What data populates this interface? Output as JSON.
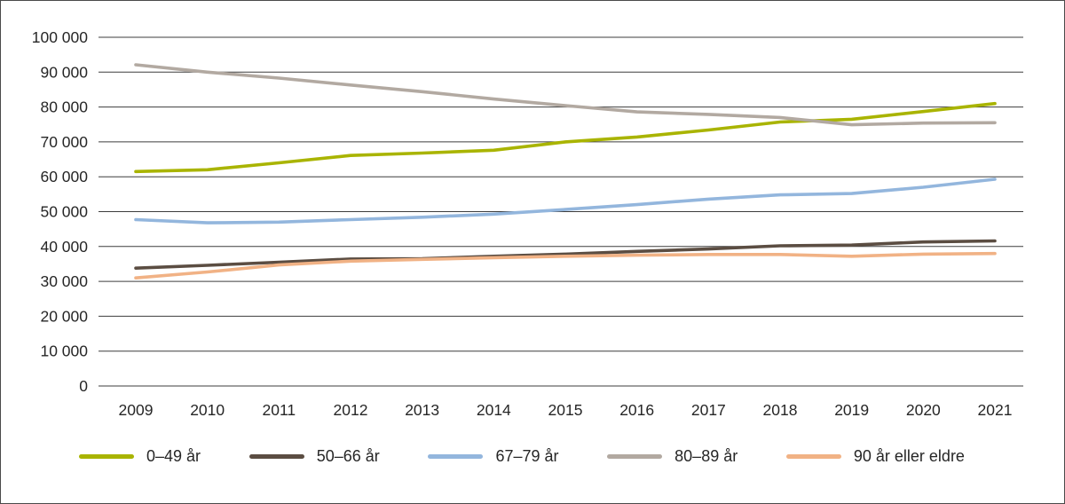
{
  "chart_data": {
    "type": "line",
    "title": "",
    "xlabel": "",
    "ylabel": "",
    "x": [
      2009,
      2010,
      2011,
      2012,
      2013,
      2014,
      2015,
      2016,
      2017,
      2018,
      2019,
      2020,
      2021
    ],
    "series": [
      {
        "name": "0–49 år",
        "color": "#a9b400",
        "values": [
          61500,
          62000,
          64000,
          66100,
          66800,
          67600,
          70000,
          71400,
          73400,
          75700,
          76500,
          78700,
          81000
        ]
      },
      {
        "name": "50–66 år",
        "color": "#5b4d42",
        "values": [
          33800,
          34600,
          35500,
          36400,
          36500,
          37200,
          37800,
          38600,
          39300,
          40200,
          40400,
          41300,
          41600
        ]
      },
      {
        "name": "67–79 år",
        "color": "#93b6dd",
        "values": [
          47700,
          46800,
          47000,
          47700,
          48400,
          49300,
          50600,
          52000,
          53600,
          54800,
          55200,
          57000,
          59300
        ]
      },
      {
        "name": "80–89 år",
        "color": "#b2a9a1",
        "values": [
          92100,
          90000,
          88300,
          86300,
          84400,
          82300,
          80400,
          78600,
          77900,
          77000,
          74900,
          75400,
          75500
        ]
      },
      {
        "name": "90 år eller eldre",
        "color": "#f1b285",
        "values": [
          31000,
          32700,
          34700,
          35800,
          36300,
          36800,
          37200,
          37500,
          37700,
          37700,
          37200,
          37800,
          38000
        ]
      }
    ],
    "ylim": [
      0,
      100000
    ],
    "ytick_step": 10000,
    "ytick_labels": [
      "0",
      "10 000",
      "20 000",
      "30 000",
      "40 000",
      "50 000",
      "60 000",
      "70 000",
      "80 000",
      "90 000",
      "100 000"
    ],
    "grid": true,
    "legend_position": "bottom"
  }
}
